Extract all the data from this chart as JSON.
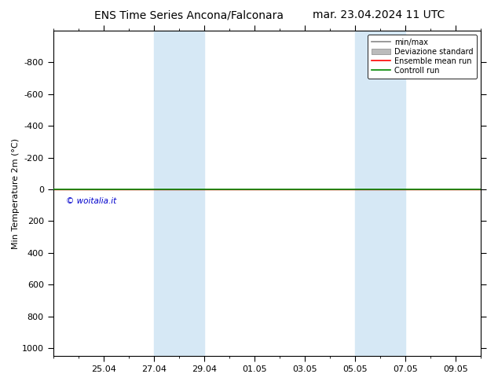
{
  "title_left": "ENS Time Series Ancona/Falconara",
  "title_right": "mar. 23.04.2024 11 UTC",
  "ylabel": "Min Temperature 2m (°C)",
  "ylim_top": -1000,
  "ylim_bottom": 1050,
  "yticks": [
    -800,
    -600,
    -400,
    -200,
    0,
    200,
    400,
    600,
    800,
    1000
  ],
  "xtick_labels": [
    "25.04",
    "27.04",
    "29.04",
    "01.05",
    "03.05",
    "05.05",
    "07.05",
    "09.05"
  ],
  "xtick_positions": [
    2,
    4,
    6,
    8,
    10,
    12,
    14,
    16
  ],
  "x_minor_positions": [
    0,
    1,
    2,
    3,
    4,
    5,
    6,
    7,
    8,
    9,
    10,
    11,
    12,
    13,
    14,
    15,
    16,
    17
  ],
  "xlim": [
    0,
    17
  ],
  "background_color": "#ffffff",
  "plot_background": "#ffffff",
  "shaded_regions": [
    {
      "xstart": 4,
      "xend": 5.5
    },
    {
      "xstart": 5.5,
      "xend": 6
    },
    {
      "xstart": 12,
      "xend": 12.5
    },
    {
      "xstart": 12.5,
      "xend": 14
    }
  ],
  "shaded_regions2": [
    {
      "xstart": 4,
      "xend": 6
    },
    {
      "xstart": 12,
      "xend": 14
    }
  ],
  "shaded_color": "#d6e8f5",
  "control_run_color": "#008800",
  "ensemble_mean_color": "#ff0000",
  "minmax_color": "#888888",
  "std_color": "#bbbbbb",
  "watermark_text": "© woitalia.it",
  "watermark_color": "#0000cc",
  "legend_labels": [
    "min/max",
    "Deviazione standard",
    "Ensemble mean run",
    "Controll run"
  ],
  "legend_colors": [
    "#888888",
    "#bbbbbb",
    "#ff0000",
    "#008800"
  ],
  "title_fontsize": 10,
  "tick_fontsize": 8,
  "ylabel_fontsize": 8
}
